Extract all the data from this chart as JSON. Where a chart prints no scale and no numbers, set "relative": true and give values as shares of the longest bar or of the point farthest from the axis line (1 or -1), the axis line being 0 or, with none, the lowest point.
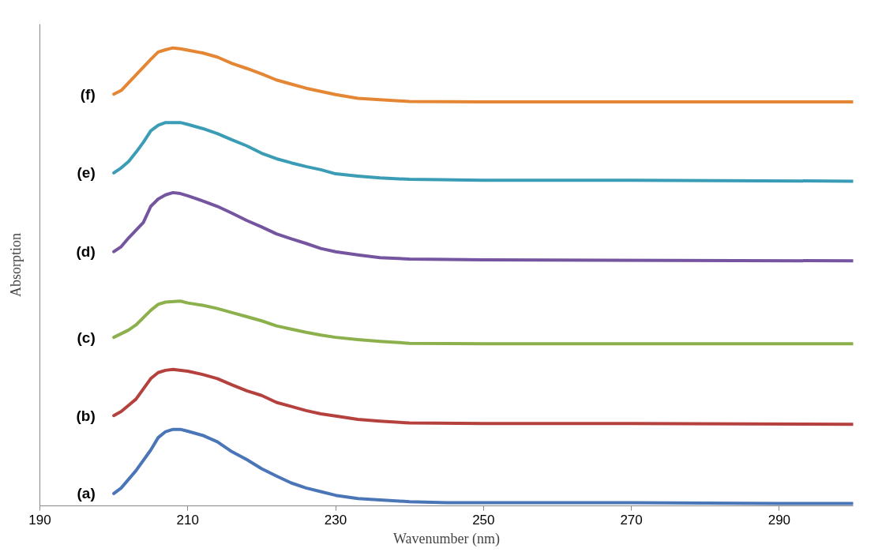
{
  "chart_data": {
    "type": "line",
    "xlabel": "Wavenumber (nm)",
    "ylabel": "Absorption",
    "relative": true,
    "xlim": [
      190,
      300
    ],
    "xticks": [
      190,
      210,
      230,
      250,
      270,
      290
    ],
    "grid": false,
    "marker": "none",
    "line_style": "solid",
    "series": [
      {
        "name": "(a)",
        "color": "#4a76b8",
        "x": [
          200,
          201,
          203,
          205,
          206,
          207,
          208,
          209,
          210,
          212,
          214,
          216,
          218,
          220,
          222,
          224,
          226,
          228,
          230,
          233,
          236,
          240,
          245,
          250,
          270,
          290,
          300
        ],
        "values": [
          0.027,
          0.039,
          0.077,
          0.122,
          0.149,
          0.162,
          0.167,
          0.167,
          0.163,
          0.154,
          0.14,
          0.118,
          0.101,
          0.081,
          0.065,
          0.05,
          0.039,
          0.031,
          0.023,
          0.016,
          0.013,
          0.009,
          0.007,
          0.007,
          0.007,
          0.005,
          0.005
        ]
      },
      {
        "name": "(b)",
        "color": "#b5413e",
        "x": [
          200,
          201,
          203,
          205,
          206,
          207,
          208,
          210,
          212,
          214,
          216,
          218,
          220,
          222,
          224,
          226,
          228,
          230,
          233,
          236,
          240,
          250,
          270,
          300
        ],
        "values": [
          0.197,
          0.206,
          0.233,
          0.278,
          0.291,
          0.296,
          0.298,
          0.294,
          0.287,
          0.278,
          0.264,
          0.251,
          0.241,
          0.226,
          0.217,
          0.208,
          0.201,
          0.196,
          0.189,
          0.185,
          0.181,
          0.18,
          0.18,
          0.178
        ]
      },
      {
        "name": "(c)",
        "color": "#8cb04c",
        "x": [
          200,
          202,
          203,
          205,
          206,
          207,
          209,
          210,
          212,
          214,
          216,
          218,
          220,
          222,
          224,
          226,
          228,
          230,
          233,
          236,
          240,
          250,
          300
        ],
        "values": [
          0.368,
          0.384,
          0.395,
          0.427,
          0.44,
          0.445,
          0.447,
          0.443,
          0.438,
          0.431,
          0.422,
          0.413,
          0.404,
          0.393,
          0.386,
          0.379,
          0.373,
          0.368,
          0.363,
          0.359,
          0.355,
          0.354,
          0.354
        ]
      },
      {
        "name": "(d)",
        "color": "#7554a0",
        "x": [
          200,
          201,
          202,
          204,
          205,
          206,
          207,
          208,
          209,
          210,
          212,
          214,
          216,
          218,
          220,
          222,
          224,
          226,
          228,
          230,
          233,
          236,
          240,
          250,
          300
        ],
        "values": [
          0.555,
          0.566,
          0.585,
          0.619,
          0.654,
          0.67,
          0.679,
          0.684,
          0.682,
          0.677,
          0.666,
          0.654,
          0.639,
          0.623,
          0.609,
          0.594,
          0.583,
          0.573,
          0.562,
          0.555,
          0.548,
          0.542,
          0.539,
          0.537,
          0.535
        ]
      },
      {
        "name": "(e)",
        "color": "#3a9cb5",
        "x": [
          200,
          201,
          202,
          203,
          204,
          205,
          206,
          207,
          209,
          210,
          212,
          214,
          216,
          218,
          220,
          222,
          224,
          226,
          228,
          230,
          233,
          236,
          240,
          250,
          270,
          300
        ],
        "values": [
          0.727,
          0.738,
          0.752,
          0.772,
          0.794,
          0.819,
          0.831,
          0.837,
          0.837,
          0.833,
          0.824,
          0.813,
          0.799,
          0.786,
          0.77,
          0.758,
          0.749,
          0.741,
          0.734,
          0.725,
          0.72,
          0.716,
          0.713,
          0.711,
          0.711,
          0.709
        ]
      },
      {
        "name": "(f)",
        "color": "#e58634",
        "x": [
          200,
          201,
          203,
          205,
          206,
          207,
          208,
          209,
          210,
          212,
          214,
          216,
          218,
          220,
          222,
          224,
          226,
          228,
          230,
          233,
          236,
          240,
          250,
          300
        ],
        "values": [
          0.899,
          0.907,
          0.941,
          0.975,
          0.991,
          0.996,
          1,
          0.998,
          0.995,
          0.989,
          0.98,
          0.966,
          0.955,
          0.943,
          0.93,
          0.921,
          0.912,
          0.905,
          0.898,
          0.89,
          0.887,
          0.883,
          0.882,
          0.882
        ]
      }
    ]
  }
}
